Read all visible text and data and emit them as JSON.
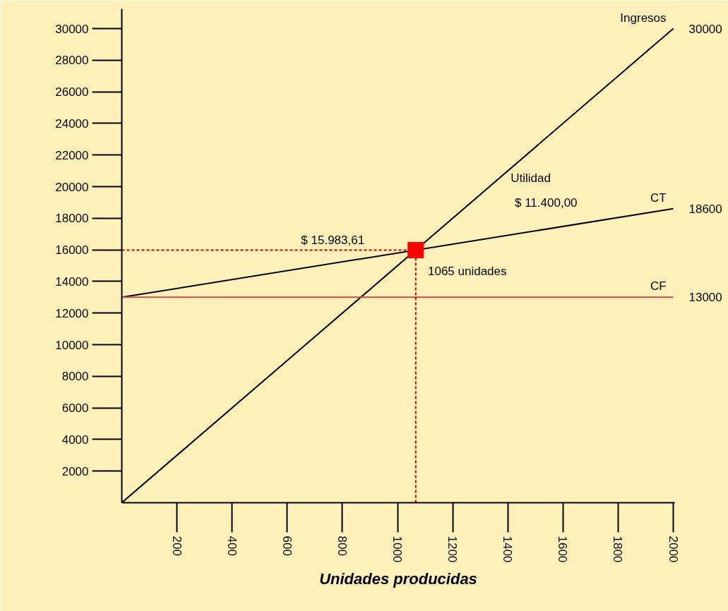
{
  "chart_data": {
    "type": "line",
    "xlabel": "Unidades producidas",
    "xlim": [
      0,
      2005
    ],
    "ylim": [
      0,
      31250
    ],
    "xticks": [
      200,
      400,
      600,
      800,
      1000,
      1200,
      1400,
      1600,
      1800,
      2000
    ],
    "yticks": [
      2000,
      4000,
      6000,
      8000,
      10000,
      12000,
      14000,
      16000,
      18000,
      20000,
      22000,
      24000,
      26000,
      28000,
      30000
    ],
    "grid": false,
    "series": [
      {
        "name": "Ingresos",
        "color": "#000000",
        "x": [
          0,
          2000
        ],
        "values": [
          0,
          30000
        ],
        "value_labels": [
          null,
          "30000"
        ]
      },
      {
        "name": "CT",
        "color": "#000000",
        "x": [
          0,
          2000
        ],
        "values": [
          13000,
          18600
        ],
        "value_labels": [
          null,
          "18600"
        ]
      },
      {
        "name": "CF",
        "color": "#c0504d",
        "x": [
          0,
          2000
        ],
        "values": [
          13000,
          13000
        ],
        "value_labels": [
          null,
          "13000"
        ]
      },
      {
        "color": "#cc0000",
        "line_style": "dashed",
        "x": [
          0,
          1066
        ],
        "values": [
          15980,
          15980
        ]
      },
      {
        "color": "#cc0000",
        "line_style": "dashed",
        "x": [
          1066,
          1066
        ],
        "values": [
          0,
          15980
        ]
      },
      {
        "type": "scatter",
        "marker": "square",
        "color": "#ff0000",
        "x": [
          1066
        ],
        "values": [
          15980
        ]
      }
    ],
    "annotations": [
      "Utilidad",
      "$ 11.400,00",
      "$ 15.983,61",
      "1065 unidades"
    ]
  }
}
